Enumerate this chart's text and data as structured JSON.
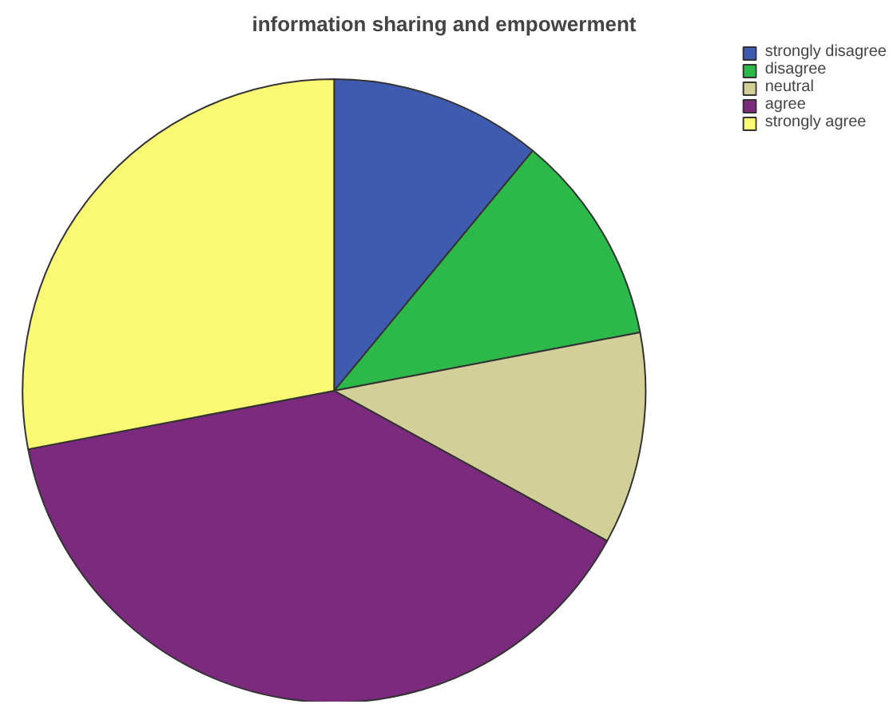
{
  "chart_data": {
    "type": "pie",
    "title": "information sharing and empowerment",
    "categories": [
      "strongly disagree",
      "disagree",
      "neutral",
      "agree",
      "strongly agree"
    ],
    "values": [
      11,
      11,
      11,
      39,
      28
    ],
    "colors": [
      "#3f5bb0",
      "#2db84a",
      "#d3cf98",
      "#7b2a7d",
      "#fbf873"
    ],
    "legend": "top right"
  }
}
